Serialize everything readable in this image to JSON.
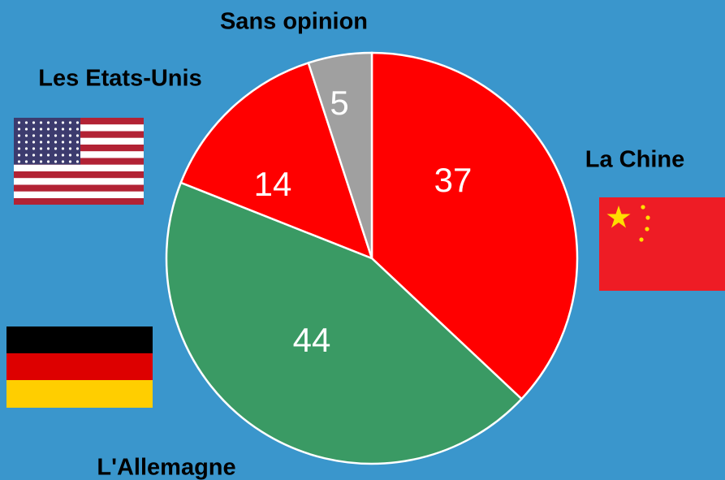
{
  "chart_data": {
    "type": "pie",
    "categories": [
      "La Chine",
      "L'Allemagne",
      "Les Etats-Unis",
      "Sans opinion"
    ],
    "values": [
      37,
      44,
      14,
      5
    ],
    "colors": [
      "#ff0000",
      "#3a9a64",
      "#ff0000",
      "#a0a0a0"
    ]
  }
}
